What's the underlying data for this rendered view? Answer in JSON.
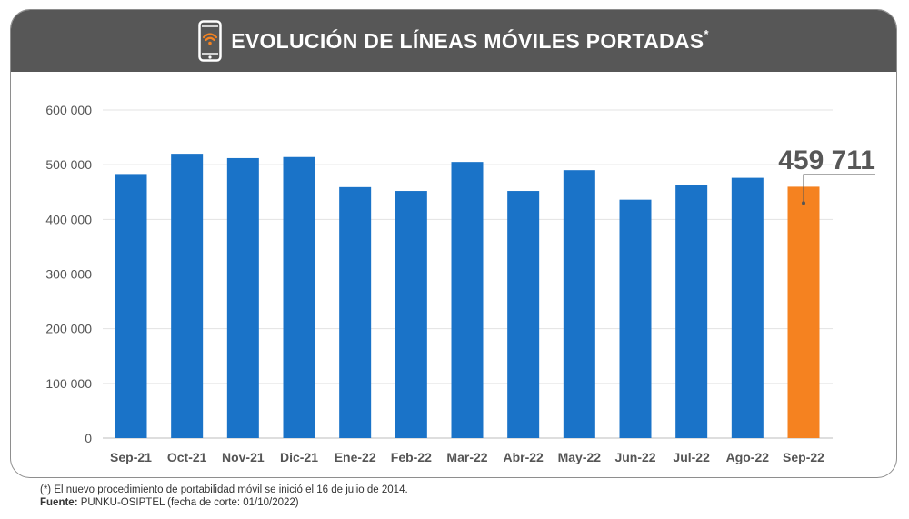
{
  "header": {
    "title": "EVOLUCIÓN DE LÍNEAS MÓVILES PORTADAS",
    "asterisk": "*",
    "icon": "mobile-phone-signal-icon"
  },
  "chart_data": {
    "type": "bar",
    "title": "EVOLUCIÓN DE LÍNEAS MÓVILES PORTADAS*",
    "xlabel": "",
    "ylabel": "",
    "categories": [
      "Sep-21",
      "Oct-21",
      "Nov-21",
      "Dic-21",
      "Ene-22",
      "Feb-22",
      "Mar-22",
      "Abr-22",
      "May-22",
      "Jun-22",
      "Jul-22",
      "Ago-22",
      "Sep-22"
    ],
    "values": [
      483000,
      520000,
      512000,
      514000,
      459000,
      452000,
      505000,
      452000,
      490000,
      436000,
      463000,
      476000,
      459711
    ],
    "ylim": [
      0,
      600000
    ],
    "yticks": [
      0,
      100000,
      200000,
      300000,
      400000,
      500000,
      600000
    ],
    "ytick_labels": [
      "0",
      "100 000",
      "200 000",
      "300 000",
      "400 000",
      "500 000",
      "600 000"
    ],
    "grid": true,
    "colors": {
      "default": "#1a73c8",
      "highlight": "#f58220"
    },
    "highlight_index": 12,
    "annotation": {
      "index": 12,
      "text": "459 711"
    }
  },
  "footer": {
    "note": "(*) El nuevo procedimiento de portabilidad móvil se inició el 16 de julio de 2014.",
    "source_label": "Fuente:",
    "source_text": " PUNKU-OSIPTEL (fecha de corte: 01/10/2022)"
  }
}
